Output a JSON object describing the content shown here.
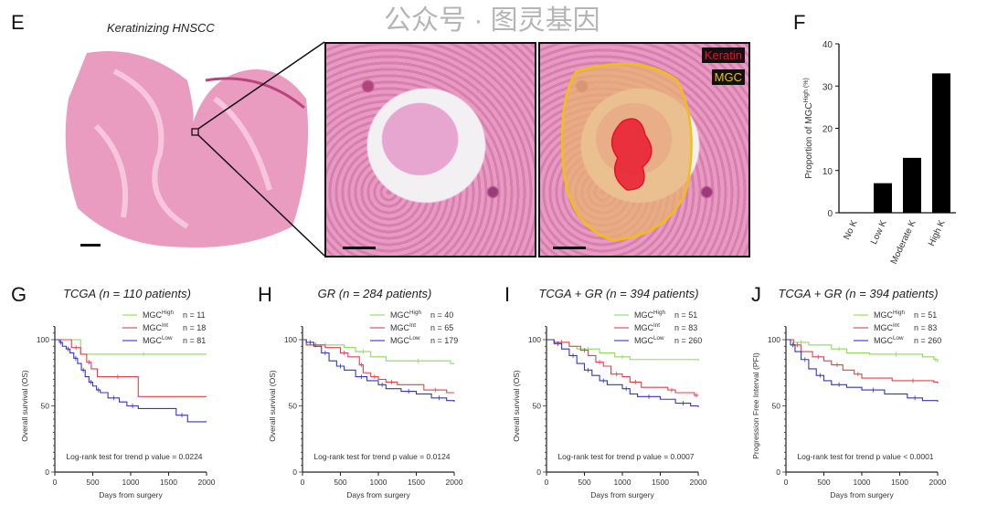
{
  "panel_e": {
    "label": "E",
    "title": "Keratinizing HNSCC",
    "legend_keratin": "Keratin",
    "legend_mgc": "MGC",
    "keratin_color": "#e8102a",
    "mgc_color": "#f0c010"
  },
  "watermark": "公众号 · 图灵基因",
  "chart_data": [
    {
      "panel": "F",
      "type": "bar",
      "categories": [
        "No K",
        "Low K",
        "Moderate K",
        "High K"
      ],
      "values": [
        0,
        7,
        13,
        33
      ],
      "ylabel": "Proportion of MGC^High (%)",
      "ylim": [
        0,
        40
      ],
      "yticks": [
        0,
        10,
        20,
        30,
        40
      ],
      "color": "#000000"
    },
    {
      "panel": "G",
      "type": "line",
      "title": "TCGA (n = 110 patients)",
      "xlabel": "Days from surgery",
      "ylabel": "Overall survival (OS)",
      "xlim": [
        0,
        2000
      ],
      "ylim": [
        0,
        100
      ],
      "xticks": [
        0,
        500,
        1000,
        1500,
        2000
      ],
      "yticks": [
        0,
        50,
        100
      ],
      "stat": "Log-rank test for trend p value = 0.0224",
      "series": [
        {
          "name": "MGC^High",
          "n": "n = 11",
          "color": "#8fd860",
          "points": [
            [
              0,
              100
            ],
            [
              340,
              89
            ],
            [
              2000,
              89
            ]
          ]
        },
        {
          "name": "MGC^Int",
          "n": "n = 18",
          "color": "#e04050",
          "points": [
            [
              0,
              100
            ],
            [
              220,
              94
            ],
            [
              340,
              89
            ],
            [
              420,
              83
            ],
            [
              480,
              78
            ],
            [
              560,
              72
            ],
            [
              1100,
              57
            ],
            [
              2000,
              57
            ]
          ]
        },
        {
          "name": "MGC^Low",
          "n": "n = 81",
          "color": "#3535c0",
          "points": [
            [
              0,
              100
            ],
            [
              60,
              98
            ],
            [
              100,
              95
            ],
            [
              150,
              93
            ],
            [
              200,
              90
            ],
            [
              250,
              86
            ],
            [
              300,
              82
            ],
            [
              350,
              77
            ],
            [
              400,
              72
            ],
            [
              450,
              68
            ],
            [
              500,
              65
            ],
            [
              550,
              62
            ],
            [
              600,
              60
            ],
            [
              700,
              56
            ],
            [
              850,
              53
            ],
            [
              950,
              50
            ],
            [
              1100,
              48
            ],
            [
              1600,
              43
            ],
            [
              1750,
              38
            ],
            [
              2000,
              38
            ]
          ]
        }
      ]
    },
    {
      "panel": "H",
      "type": "line",
      "title": "GR (n = 284 patients)",
      "xlabel": "Days from surgery",
      "ylabel": "Overall survival (OS)",
      "xlim": [
        0,
        2000
      ],
      "ylim": [
        0,
        100
      ],
      "xticks": [
        0,
        500,
        1000,
        1500,
        2000
      ],
      "yticks": [
        0,
        50,
        100
      ],
      "stat": "Log-rank test for trend p value = 0.0124",
      "series": [
        {
          "name": "MGC^High",
          "n": "n = 40",
          "color": "#8fd860",
          "points": [
            [
              0,
              100
            ],
            [
              50,
              96
            ],
            [
              550,
              94
            ],
            [
              700,
              91
            ],
            [
              900,
              87
            ],
            [
              1100,
              84
            ],
            [
              1950,
              82
            ],
            [
              2000,
              82
            ]
          ]
        },
        {
          "name": "MGC^Int",
          "n": "n = 65",
          "color": "#e04050",
          "points": [
            [
              0,
              100
            ],
            [
              50,
              96
            ],
            [
              300,
              94
            ],
            [
              500,
              90
            ],
            [
              600,
              87
            ],
            [
              750,
              81
            ],
            [
              800,
              75
            ],
            [
              900,
              72
            ],
            [
              1000,
              70
            ],
            [
              1100,
              68
            ],
            [
              1250,
              66
            ],
            [
              1600,
              62
            ],
            [
              1900,
              60
            ],
            [
              2000,
              60
            ]
          ]
        },
        {
          "name": "MGC^Low",
          "n": "n = 179",
          "color": "#3535c0",
          "points": [
            [
              0,
              100
            ],
            [
              50,
              98
            ],
            [
              150,
              95
            ],
            [
              250,
              90
            ],
            [
              350,
              84
            ],
            [
              450,
              80
            ],
            [
              550,
              77
            ],
            [
              700,
              72
            ],
            [
              850,
              69
            ],
            [
              1000,
              66
            ],
            [
              1100,
              63
            ],
            [
              1300,
              61
            ],
            [
              1500,
              59
            ],
            [
              1700,
              56
            ],
            [
              1900,
              54
            ],
            [
              2000,
              53
            ]
          ]
        }
      ]
    },
    {
      "panel": "I",
      "type": "line",
      "title": "TCGA + GR (n = 394 patients)",
      "xlabel": "Days from surgery",
      "ylabel": "Overall survival (OS)",
      "xlim": [
        0,
        2000
      ],
      "ylim": [
        0,
        100
      ],
      "xticks": [
        0,
        500,
        1000,
        1500,
        2000
      ],
      "yticks": [
        0,
        50,
        100
      ],
      "stat": "Log-rank test for trend p value = 0.0007",
      "series": [
        {
          "name": "MGC^High",
          "n": "n = 51",
          "color": "#8fd860",
          "points": [
            [
              0,
              100
            ],
            [
              100,
              98
            ],
            [
              300,
              95
            ],
            [
              400,
              93
            ],
            [
              700,
              90
            ],
            [
              900,
              87
            ],
            [
              1100,
              85
            ],
            [
              2000,
              84
            ]
          ]
        },
        {
          "name": "MGC^Int",
          "n": "n = 83",
          "color": "#e04050",
          "points": [
            [
              0,
              100
            ],
            [
              100,
              98
            ],
            [
              300,
              95
            ],
            [
              450,
              92
            ],
            [
              550,
              88
            ],
            [
              650,
              83
            ],
            [
              750,
              80
            ],
            [
              850,
              74
            ],
            [
              1000,
              72
            ],
            [
              1100,
              68
            ],
            [
              1250,
              64
            ],
            [
              1600,
              62
            ],
            [
              1700,
              60
            ],
            [
              1950,
              58
            ],
            [
              2000,
              58
            ]
          ]
        },
        {
          "name": "MGC^Low",
          "n": "n = 260",
          "color": "#3535c0",
          "points": [
            [
              0,
              100
            ],
            [
              100,
              97
            ],
            [
              200,
              93
            ],
            [
              300,
              88
            ],
            [
              400,
              82
            ],
            [
              500,
              77
            ],
            [
              600,
              73
            ],
            [
              700,
              69
            ],
            [
              800,
              66
            ],
            [
              1000,
              63
            ],
            [
              1100,
              59
            ],
            [
              1200,
              57
            ],
            [
              1500,
              55
            ],
            [
              1700,
              52
            ],
            [
              1900,
              50
            ],
            [
              2000,
              49
            ]
          ]
        }
      ]
    },
    {
      "panel": "J",
      "type": "line",
      "title": "TCGA + GR (n = 394 patients)",
      "xlabel": "Days from surgery",
      "ylabel": "Progression Free Interval (PFI)",
      "xlim": [
        0,
        2000
      ],
      "ylim": [
        0,
        100
      ],
      "xticks": [
        0,
        500,
        1000,
        1500,
        2000
      ],
      "yticks": [
        0,
        50,
        100
      ],
      "stat": "Log-rank test for trend p value < 0.0001",
      "series": [
        {
          "name": "MGC^High",
          "n": "n = 51",
          "color": "#8fd860",
          "points": [
            [
              0,
              100
            ],
            [
              100,
              98
            ],
            [
              300,
              96
            ],
            [
              600,
              93
            ],
            [
              800,
              90
            ],
            [
              1100,
              89
            ],
            [
              1800,
              87
            ],
            [
              1950,
              85
            ],
            [
              2000,
              83
            ]
          ]
        },
        {
          "name": "MGC^Int",
          "n": "n = 83",
          "color": "#e04050",
          "points": [
            [
              0,
              100
            ],
            [
              100,
              96
            ],
            [
              200,
              91
            ],
            [
              350,
              87
            ],
            [
              500,
              84
            ],
            [
              600,
              81
            ],
            [
              750,
              77
            ],
            [
              900,
              74
            ],
            [
              1000,
              71
            ],
            [
              1400,
              69
            ],
            [
              1950,
              68
            ],
            [
              2000,
              67
            ]
          ]
        },
        {
          "name": "MGC^Low",
          "n": "n = 260",
          "color": "#3535c0",
          "points": [
            [
              0,
              100
            ],
            [
              60,
              96
            ],
            [
              120,
              91
            ],
            [
              200,
              85
            ],
            [
              300,
              78
            ],
            [
              400,
              73
            ],
            [
              500,
              69
            ],
            [
              600,
              66
            ],
            [
              800,
              64
            ],
            [
              1000,
              62
            ],
            [
              1300,
              59
            ],
            [
              1600,
              56
            ],
            [
              1800,
              54
            ],
            [
              2000,
              53
            ]
          ]
        }
      ]
    }
  ]
}
